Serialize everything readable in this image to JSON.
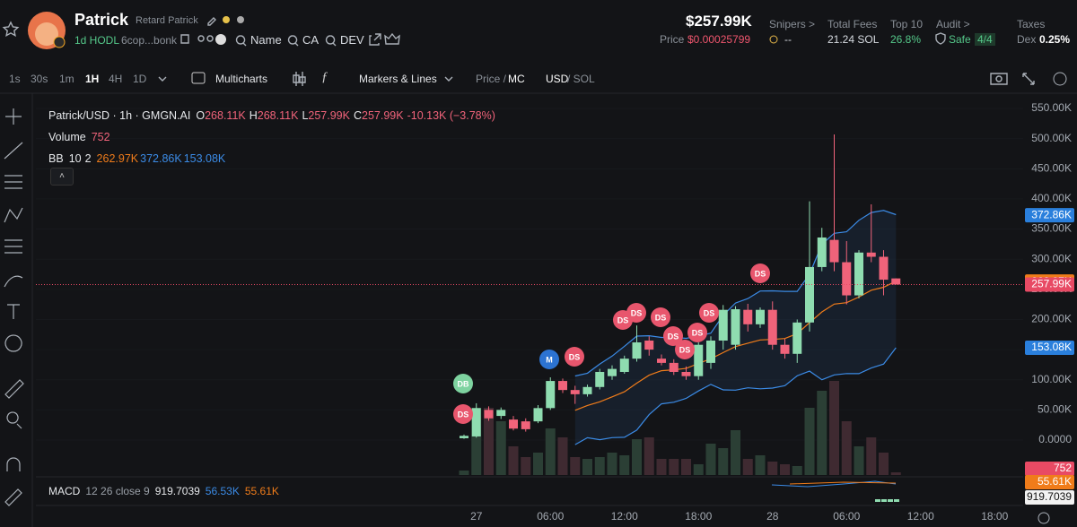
{
  "header": {
    "name": "Patrick",
    "alias": "Retard Patrick",
    "hodl": "1d HODL",
    "address": "6cop...bonk",
    "links": [
      "Name",
      "CA",
      "DEV"
    ],
    "market_cap": "$257.99K",
    "price_label": "Price",
    "price": "$0.00025799",
    "stats": [
      {
        "label": "Snipers >",
        "value": "--"
      },
      {
        "label": "Total Fees",
        "value": "21.24 SOL"
      },
      {
        "label": "Top 10",
        "value": "26.8%"
      },
      {
        "label": "Audit >",
        "value": "Safe",
        "extra": "4/4"
      },
      {
        "label": "Taxes",
        "prefix": "Dex",
        "value": "0.25%"
      }
    ]
  },
  "toolbar": {
    "intervals": [
      "1s",
      "30s",
      "1m",
      "1H",
      "4H",
      "1D"
    ],
    "multicharts": "Multicharts",
    "markers": "Markers & Lines",
    "price_mc": [
      "Price /",
      "MC"
    ],
    "currency": [
      "USD",
      "/ SOL"
    ]
  },
  "chart": {
    "symbol": "Patrick/USD · 1h · GMGN.AI",
    "ohlc": [
      {
        "key": "O",
        "value": "268.11K"
      },
      {
        "key": "H",
        "value": "268.11K"
      },
      {
        "key": "L",
        "value": "257.99K"
      },
      {
        "key": "C",
        "value": "257.99K"
      }
    ],
    "change": "-10.13K (−3.78%)",
    "volume_label": "Volume",
    "volume_value": "752",
    "bb_label": "BB",
    "bb_params": [
      10,
      2
    ],
    "bb_values": [
      "262.97K",
      "372.86K",
      "153.08K"
    ],
    "ylim": [
      -58000,
      566400
    ],
    "yticks": [
      {
        "value": 0,
        "label": "0.0000"
      },
      {
        "value": 50000,
        "label": "50.00K"
      },
      {
        "value": 100000,
        "label": "100.00K"
      },
      {
        "value": 150000,
        "label": "150.00K"
      },
      {
        "value": 200000,
        "label": "200.00K"
      },
      {
        "value": 250000,
        "label": "250.00K"
      },
      {
        "value": 300000,
        "label": "300.00K"
      },
      {
        "value": 350000,
        "label": "350.00K"
      },
      {
        "value": 400000,
        "label": "400.00K"
      },
      {
        "value": 450000,
        "label": "450.00K"
      },
      {
        "value": 500000,
        "label": "500.00K"
      },
      {
        "value": 550000,
        "label": "550.00K"
      }
    ],
    "price_tags": [
      {
        "value": 372860,
        "label": "372.86K",
        "color": "#2a7fdc"
      },
      {
        "value": 262970,
        "label": "262.97K",
        "color": "#f07c1a"
      },
      {
        "value": 257990,
        "label": "257.99K",
        "color": "#e84a64"
      },
      {
        "value": 153080,
        "label": "153.08K",
        "color": "#2a7fdc"
      }
    ],
    "pane_tags": [
      "752",
      "55.61K",
      "919.7039"
    ],
    "xticks": [
      "27",
      "06:00",
      "12:00",
      "18:00",
      "28",
      "06:00",
      "12:00",
      "18:00"
    ],
    "macd": {
      "label": "MACD",
      "params": "12 26 close 9",
      "values": [
        "919.7039",
        "56.53K",
        "55.61K"
      ]
    },
    "markers": [
      "DB",
      "DS",
      "M",
      "DS",
      "DS",
      "DS",
      "DS",
      "DS",
      "DS",
      "DS",
      "DS",
      "DS"
    ],
    "candles": {
      "open": [
        3000,
        6000,
        50000,
        40000,
        34000,
        31000,
        31000,
        53000,
        98000,
        83000,
        76000,
        88000,
        106000,
        113000,
        135000,
        165000,
        135000,
        128000,
        113000,
        106000,
        128000,
        165000,
        158000,
        216000,
        192000,
        216000,
        158000,
        143000,
        195000,
        287000,
        332000,
        295000,
        240000,
        311000,
        304000,
        268110
      ],
      "high": [
        9000,
        61000,
        56000,
        54000,
        40000,
        36000,
        58000,
        104000,
        102000,
        90000,
        92000,
        118000,
        124000,
        140000,
        190000,
        172000,
        142000,
        134000,
        122000,
        162000,
        172000,
        224000,
        222000,
        226000,
        220000,
        230000,
        168000,
        200000,
        396000,
        352000,
        507000,
        330000,
        315000,
        391000,
        315000,
        268110
      ],
      "low": [
        2000,
        4000,
        32000,
        35000,
        16000,
        14000,
        28000,
        50000,
        78000,
        60000,
        72000,
        84000,
        100000,
        110000,
        130000,
        140000,
        124000,
        108000,
        100000,
        100000,
        118000,
        150000,
        150000,
        180000,
        186000,
        150000,
        135000,
        128000,
        180000,
        280000,
        280000,
        225000,
        235000,
        295000,
        240000,
        257990
      ],
      "close": [
        7000,
        53000,
        36000,
        50000,
        19000,
        18000,
        53000,
        98000,
        83000,
        76000,
        88000,
        113000,
        118000,
        135000,
        162000,
        150000,
        128000,
        113000,
        106000,
        158000,
        165000,
        216000,
        217000,
        192000,
        216000,
        158000,
        143000,
        195000,
        287000,
        336000,
        295000,
        240000,
        311000,
        304000,
        266000,
        257990
      ]
    },
    "volumes": [
      1250,
      18750,
      18750,
      15000,
      8000,
      5000,
      6250,
      13000,
      10500,
      5000,
      4500,
      5000,
      6250,
      5500,
      10000,
      10500,
      4500,
      4500,
      4500,
      3000,
      8750,
      7500,
      12500,
      4500,
      5500,
      3750,
      3000,
      2500,
      18750,
      23500,
      26250,
      15000,
      8000,
      10500,
      6250,
      752
    ]
  }
}
